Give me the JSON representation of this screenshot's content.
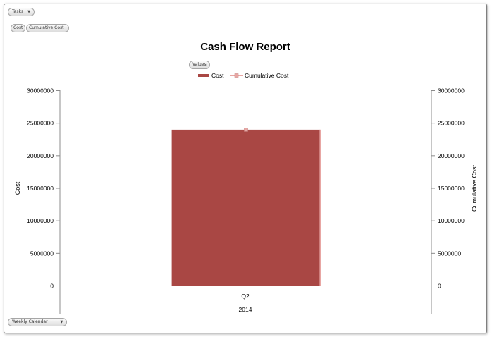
{
  "filters": {
    "tasks_label": "Tasks",
    "cost_label": "Cost",
    "cumulative_cost_label": "Cumulative Cost",
    "values_label": "Values",
    "weekly_calendar_label": "Weekly Calendar",
    "dropdown_arrow": "▼"
  },
  "colors": {
    "bar": "#a94744",
    "line": "#e8a6a3",
    "axis": "#8c8c8c",
    "text": "#000000"
  },
  "chart_data": {
    "type": "bar",
    "title": "Cash Flow Report",
    "categories": [
      "Q2"
    ],
    "category_group_label": "2014",
    "series": [
      {
        "name": "Cost",
        "type": "bar",
        "axis": "left",
        "values": [
          24000000
        ]
      },
      {
        "name": "Cumulative Cost",
        "type": "line",
        "axis": "right",
        "values": [
          24000000
        ]
      }
    ],
    "ylabel": "Cost",
    "y2label": "Cumulative Cost",
    "ylim": [
      0,
      30000000
    ],
    "y2lim": [
      0,
      30000000
    ],
    "yticks": [
      "0",
      "5000000",
      "10000000",
      "15000000",
      "20000000",
      "25000000",
      "30000000"
    ],
    "y2ticks": [
      "0",
      "5000000",
      "10000000",
      "15000000",
      "20000000",
      "25000000",
      "30000000"
    ],
    "grid": false,
    "legend": "top-center"
  }
}
